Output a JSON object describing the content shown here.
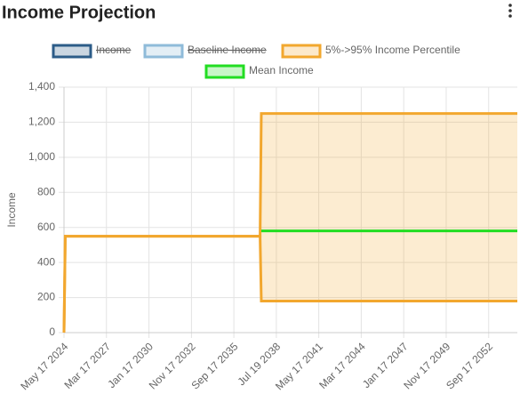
{
  "chart_data": {
    "type": "line",
    "title": "Income Projection",
    "ylabel": "Income",
    "x": [
      "May 17 2024",
      "Jun 17 2024",
      "Jun 17 2037",
      "Jul 17 2037",
      "Aug 17 2054"
    ],
    "xlim": [
      "May 17 2024",
      "Aug 17 2054"
    ],
    "xticks": [
      "May 17 2024",
      "Mar 17 2027",
      "Jan 17 2030",
      "Nov 17 2032",
      "Sep 17 2035",
      "Jul 19 2038",
      "May 17 2041",
      "Mar 17 2044",
      "Jan 17 2047",
      "Nov 17 2049",
      "Sep 17 2052"
    ],
    "ylim": [
      0,
      1400
    ],
    "yticks": [
      0,
      200,
      400,
      600,
      800,
      {
        "value": 1000,
        "label": "1,000"
      },
      {
        "value": 1200,
        "label": "1,200"
      },
      {
        "value": 1400,
        "label": "1,400"
      }
    ],
    "grid": true,
    "series": [
      {
        "name": "Income",
        "color": "#2c5c88",
        "hidden": true
      },
      {
        "name": "Baseline Income",
        "color": "#8fbbd9",
        "hidden": true
      },
      {
        "name": "5%->95% Income Percentile",
        "color": "#f2a72e",
        "values": [
          0,
          550,
          550,
          1250,
          1250
        ],
        "lower": [
          0,
          550,
          550,
          180,
          180
        ]
      },
      {
        "name": "Mean Income",
        "color": "#22dd22",
        "values": [
          null,
          null,
          null,
          580,
          580
        ]
      }
    ]
  }
}
